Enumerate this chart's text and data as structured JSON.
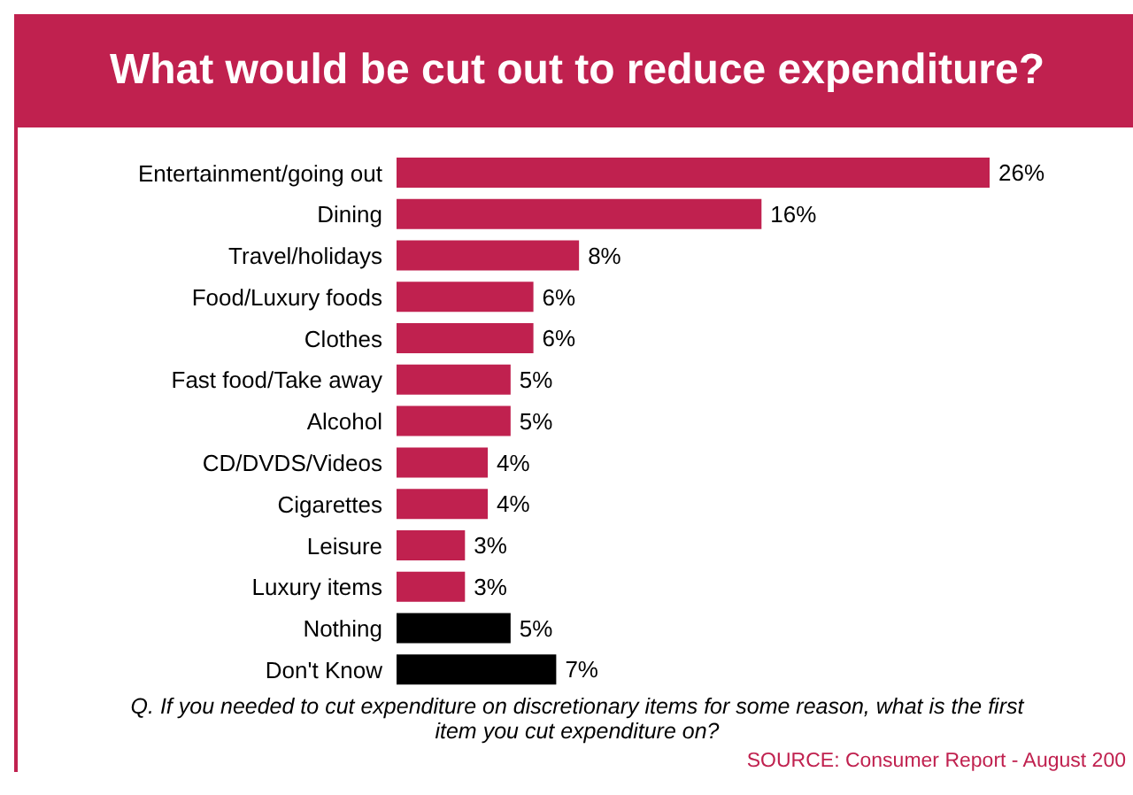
{
  "chart_data": {
    "type": "bar",
    "orientation": "horizontal",
    "title": "What would be cut out to reduce expenditure?",
    "categories": [
      "Entertainment/going out",
      "Dining",
      "Travel/holidays",
      "Food/Luxury foods",
      "Clothes",
      "Fast food/Take away",
      "Alcohol",
      "CD/DVDS/Videos",
      "Cigarettes",
      "Leisure",
      "Luxury items",
      "Nothing",
      "Don't Know"
    ],
    "values": [
      26,
      16,
      8,
      6,
      6,
      5,
      5,
      4,
      4,
      3,
      3,
      5,
      7
    ],
    "value_labels": [
      "26%",
      "16%",
      "8%",
      "6%",
      "6%",
      "5%",
      "5%",
      "4%",
      "4%",
      "3%",
      "3%",
      "5%",
      "7%"
    ],
    "colors": [
      "#c0214f",
      "#c0214f",
      "#c0214f",
      "#c0214f",
      "#c0214f",
      "#c0214f",
      "#c0214f",
      "#c0214f",
      "#c0214f",
      "#c0214f",
      "#c0214f",
      "#000000",
      "#000000"
    ],
    "tick_labels": "y",
    "annotations": [
      "Q. If you needed to cut expenditure on discretionary items for some reason, what is the first item you cut expenditure on?",
      "SOURCE: Consumer Report - August 200"
    ]
  }
}
